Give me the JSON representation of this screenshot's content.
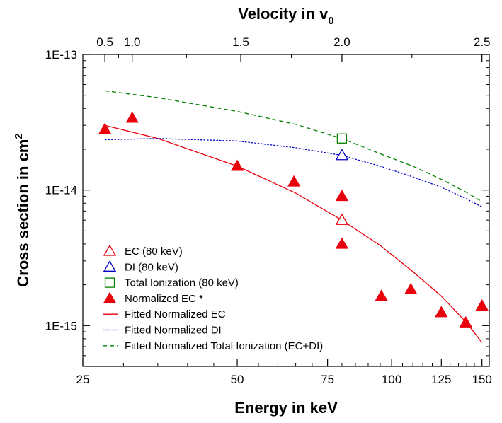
{
  "chart_data": {
    "type": "scatter",
    "xscale": "log",
    "yscale": "log",
    "xlabel": "Energy in keV",
    "ylabel_main": "Cross section in cm",
    "ylabel_sup": "2",
    "top_xlabel_main": "Velocity in v",
    "top_xlabel_sub": "0",
    "xlim": [
      25,
      155
    ],
    "ylim": [
      5e-16,
      1e-13
    ],
    "x_ticks": [
      25,
      50,
      75,
      100,
      125,
      150
    ],
    "x_tick_labels": [
      "25",
      "50",
      "75",
      "100",
      "125",
      "150"
    ],
    "y_ticks": [
      1e-15,
      1e-14,
      1e-13
    ],
    "y_tick_labels": [
      "1E-15",
      "1E-14",
      "1E-13"
    ],
    "top_ticks_velocity": [
      0.5,
      1.0,
      1.5,
      2.0,
      2.5
    ],
    "top_tick_labels": [
      "0.5",
      "1.0",
      "1.5",
      "2.0",
      "2.5"
    ],
    "top_tick_energy_keV": [
      27.6,
      31.2,
      50.8,
      80.0,
      150.0
    ],
    "legend_position": "bottom-left",
    "series": [
      {
        "name": "EC (80 keV)",
        "kind": "marker",
        "marker": "triangle-open",
        "color": "#e8000b",
        "points": [
          [
            80,
            6e-15
          ]
        ]
      },
      {
        "name": "DI (80 keV)",
        "kind": "marker",
        "marker": "triangle-open",
        "color": "#0000cc",
        "points": [
          [
            80,
            1.8e-14
          ]
        ]
      },
      {
        "name": "Total Ionization (80 keV)",
        "kind": "marker",
        "marker": "square-open",
        "color": "#008000",
        "points": [
          [
            80,
            2.4e-14
          ]
        ]
      },
      {
        "name": "Normalized EC *",
        "kind": "marker",
        "marker": "triangle-filled",
        "color": "#e8000b",
        "points": [
          [
            27.6,
            2.8e-14
          ],
          [
            31.2,
            3.4e-14
          ],
          [
            50,
            1.5e-14
          ],
          [
            64.5,
            1.15e-14
          ],
          [
            80,
            9e-15
          ],
          [
            80,
            4e-15
          ],
          [
            95.5,
            1.65e-15
          ],
          [
            109,
            1.85e-15
          ],
          [
            125,
            1.25e-15
          ],
          [
            139.5,
            1.05e-15
          ],
          [
            150,
            1.4e-15
          ]
        ]
      },
      {
        "name": "Fitted Normalized EC",
        "kind": "line",
        "dash": "solid",
        "color": "#e8000b",
        "points": [
          [
            27.6,
            3e-14
          ],
          [
            35,
            2.4e-14
          ],
          [
            50,
            1.5e-14
          ],
          [
            65,
            9.5e-15
          ],
          [
            80,
            6e-15
          ],
          [
            95,
            3.9e-15
          ],
          [
            110,
            2.5e-15
          ],
          [
            125,
            1.65e-15
          ],
          [
            140,
            1.05e-15
          ],
          [
            150,
            7.5e-16
          ]
        ]
      },
      {
        "name": "Fitted Normalized DI",
        "kind": "line",
        "dash": "dotted",
        "color": "#0000cc",
        "points": [
          [
            27.6,
            2.35e-14
          ],
          [
            35,
            2.4e-14
          ],
          [
            50,
            2.3e-14
          ],
          [
            65,
            2.05e-14
          ],
          [
            80,
            1.8e-14
          ],
          [
            95,
            1.5e-14
          ],
          [
            110,
            1.25e-14
          ],
          [
            125,
            1.05e-14
          ],
          [
            140,
            8.6e-15
          ],
          [
            150,
            7.5e-15
          ]
        ]
      },
      {
        "name": "Fitted Normalized Total Ionization (EC+DI)",
        "kind": "line",
        "dash": "dashed",
        "color": "#008000",
        "points": [
          [
            27.6,
            5.4e-14
          ],
          [
            35,
            4.8e-14
          ],
          [
            50,
            3.8e-14
          ],
          [
            65,
            3.05e-14
          ],
          [
            80,
            2.4e-14
          ],
          [
            95,
            1.85e-14
          ],
          [
            110,
            1.5e-14
          ],
          [
            125,
            1.2e-14
          ],
          [
            140,
            9.6e-15
          ],
          [
            150,
            8.2e-15
          ]
        ]
      }
    ]
  }
}
